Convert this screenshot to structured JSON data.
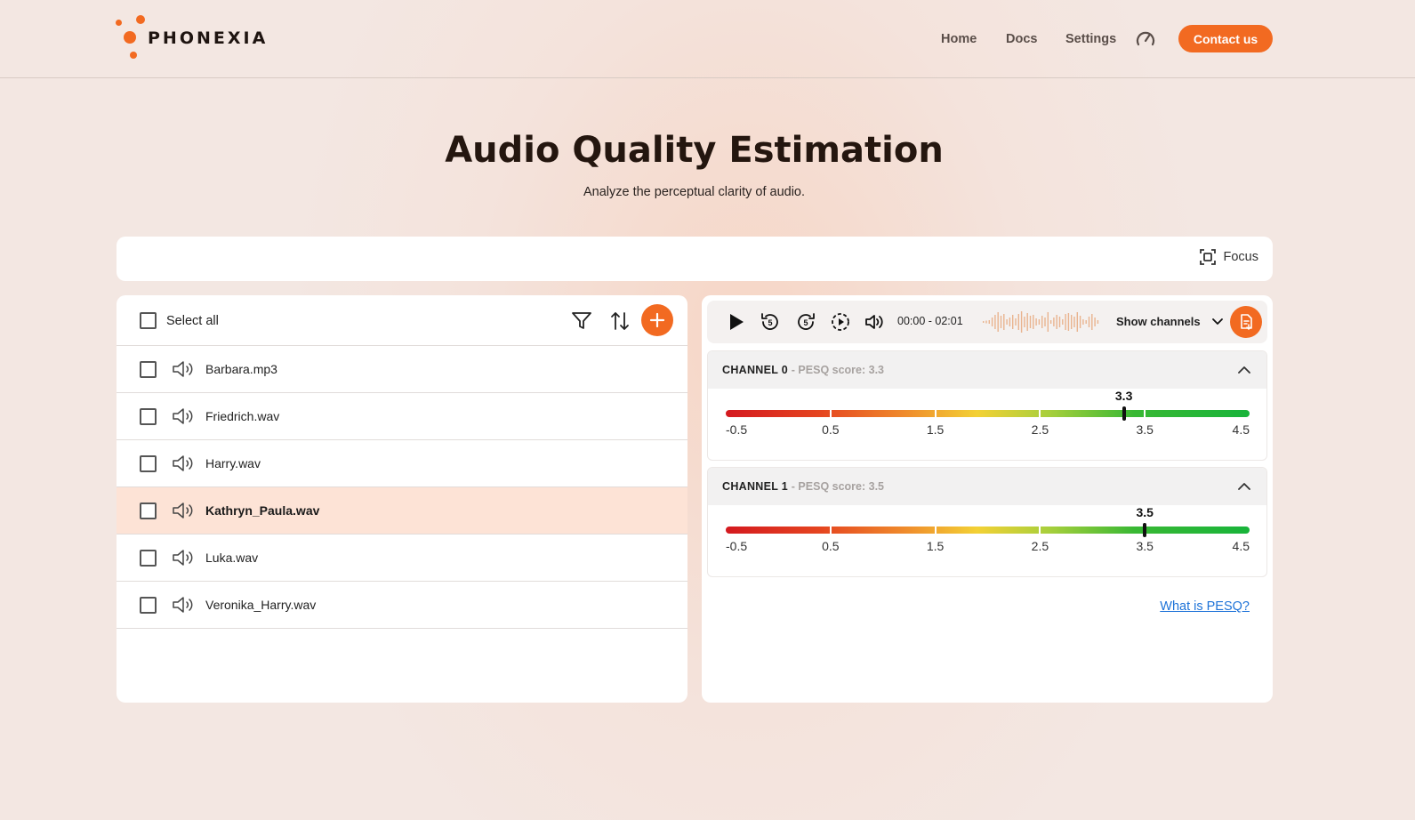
{
  "header": {
    "brand": "PHONEXIA",
    "nav": [
      {
        "label": "Home"
      },
      {
        "label": "Docs"
      },
      {
        "label": "Settings"
      }
    ],
    "gauge_icon": "speedometer-icon",
    "contact_label": "Contact us",
    "accent": "#f26a21"
  },
  "page": {
    "title": "Audio Quality Estimation",
    "subtitle": "Analyze the perceptual clarity of audio."
  },
  "toolbar": {
    "focus_label": "Focus"
  },
  "file_list": {
    "select_all_label": "Select all",
    "files": [
      {
        "name": "Barbara.mp3",
        "selected": false
      },
      {
        "name": "Friedrich.wav",
        "selected": false
      },
      {
        "name": "Harry.wav",
        "selected": false
      },
      {
        "name": "Kathryn_Paula.wav",
        "selected": true
      },
      {
        "name": "Luka.wav",
        "selected": false
      },
      {
        "name": "Veronika_Harry.wav",
        "selected": false
      }
    ]
  },
  "player": {
    "time": "00:00 - 02:01",
    "show_channels_label": "Show channels",
    "skip_seconds": "5"
  },
  "channels": [
    {
      "name": "CHANNEL 0",
      "score_text": "- PESQ score: 3.3",
      "score": 3.3,
      "score_label": "3.3"
    },
    {
      "name": "CHANNEL 1",
      "score_text": "- PESQ score: 3.5",
      "score": 3.5,
      "score_label": "3.5"
    }
  ],
  "scale": {
    "min": -0.5,
    "max": 4.5,
    "ticks": [
      "-0.5",
      "0.5",
      "1.5",
      "2.5",
      "3.5",
      "4.5"
    ]
  },
  "pesq_link_label": "What is PESQ?"
}
